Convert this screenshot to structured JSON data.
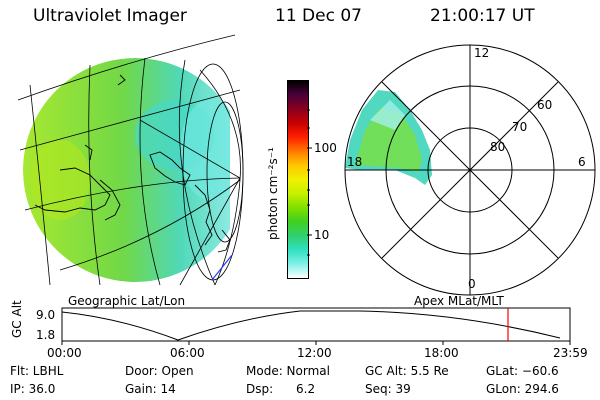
{
  "header": {
    "instrument": "Ultraviolet Imager",
    "date": "11 Dec 07",
    "time": "21:00:17 UT"
  },
  "geo_panel": {
    "label": "Geographic Lat/Lon"
  },
  "polar_panel": {
    "label": "Apex MLat/MLT",
    "mlt_labels": [
      "12",
      "18",
      "6",
      "0"
    ],
    "mlat_labels": [
      "60",
      "70",
      "80"
    ]
  },
  "colorbar": {
    "unit_label": "photon cm⁻²s⁻¹",
    "ticks": [
      "100",
      "10"
    ],
    "colors": [
      "#000000",
      "#4a003a",
      "#8a0020",
      "#c80000",
      "#ff2000",
      "#ff7a00",
      "#ffc800",
      "#f0f000",
      "#c8f000",
      "#80e000",
      "#40d020",
      "#30d070",
      "#30e0c0",
      "#80f0e8",
      "#ffffff"
    ]
  },
  "altitude_plot": {
    "ylabel": "GC Alt",
    "ymax_label": "9.0",
    "ymin_label": "1.8",
    "x_ticks": [
      "00:00",
      "06:00",
      "12:00",
      "18:00",
      "23:59"
    ],
    "marker_color": "#ff0000"
  },
  "footer": {
    "filter": "Flt: LBHL",
    "ip": "IP: 36.0",
    "door": "Door: Open",
    "gain": "Gain: 14",
    "mode": "Mode: Normal",
    "dsp": "Dsp:      6.2",
    "gc_alt": "GC Alt: 5.5 Re",
    "seq": "Seq: 39",
    "glat": "GLat: −60.6",
    "glon": "GLon: 294.6"
  }
}
